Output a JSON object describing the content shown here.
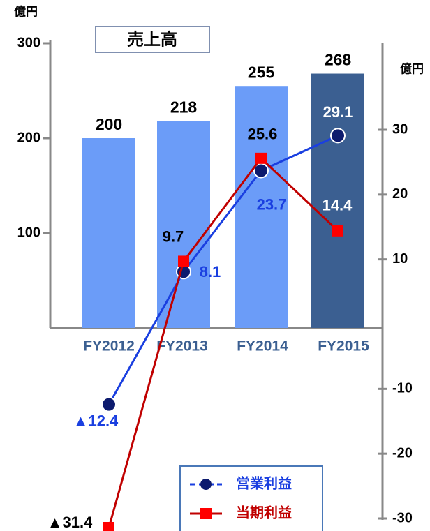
{
  "chart_data": {
    "type": "bar",
    "title": "売上高",
    "categories": [
      "FY2012",
      "FY2013",
      "FY2014",
      "FY2015"
    ],
    "unit_left": "億円",
    "unit_right": "億円",
    "ylim": [
      0,
      300
    ],
    "yticks": [
      100,
      200,
      300
    ],
    "y2lim": [
      -30,
      30
    ],
    "y2ticks": [
      -30,
      -20,
      -10,
      10,
      20,
      30
    ],
    "series": [
      {
        "type": "bar",
        "values": [
          200,
          218,
          255,
          268
        ],
        "colors": [
          "#6b9cf8",
          "#6b9cf8",
          "#6b9cf8",
          "#3b5f91"
        ]
      },
      {
        "type": "line",
        "name": "営業利益",
        "axis": "y2",
        "color": "#1a3fe0",
        "marker_color": "#0d1b6e",
        "values": [
          -12.4,
          8.1,
          23.7,
          29.1
        ],
        "value_labels": [
          "▲12.4",
          "8.1",
          "23.7",
          "29.1"
        ]
      },
      {
        "type": "line",
        "name": "当期利益",
        "axis": "y2",
        "color": "#c00000",
        "marker_color": "#ff0000",
        "values": [
          -31.4,
          9.7,
          25.6,
          14.4
        ],
        "value_labels": [
          "▲31.4",
          "9.7",
          "25.6",
          "14.4"
        ]
      }
    ]
  }
}
